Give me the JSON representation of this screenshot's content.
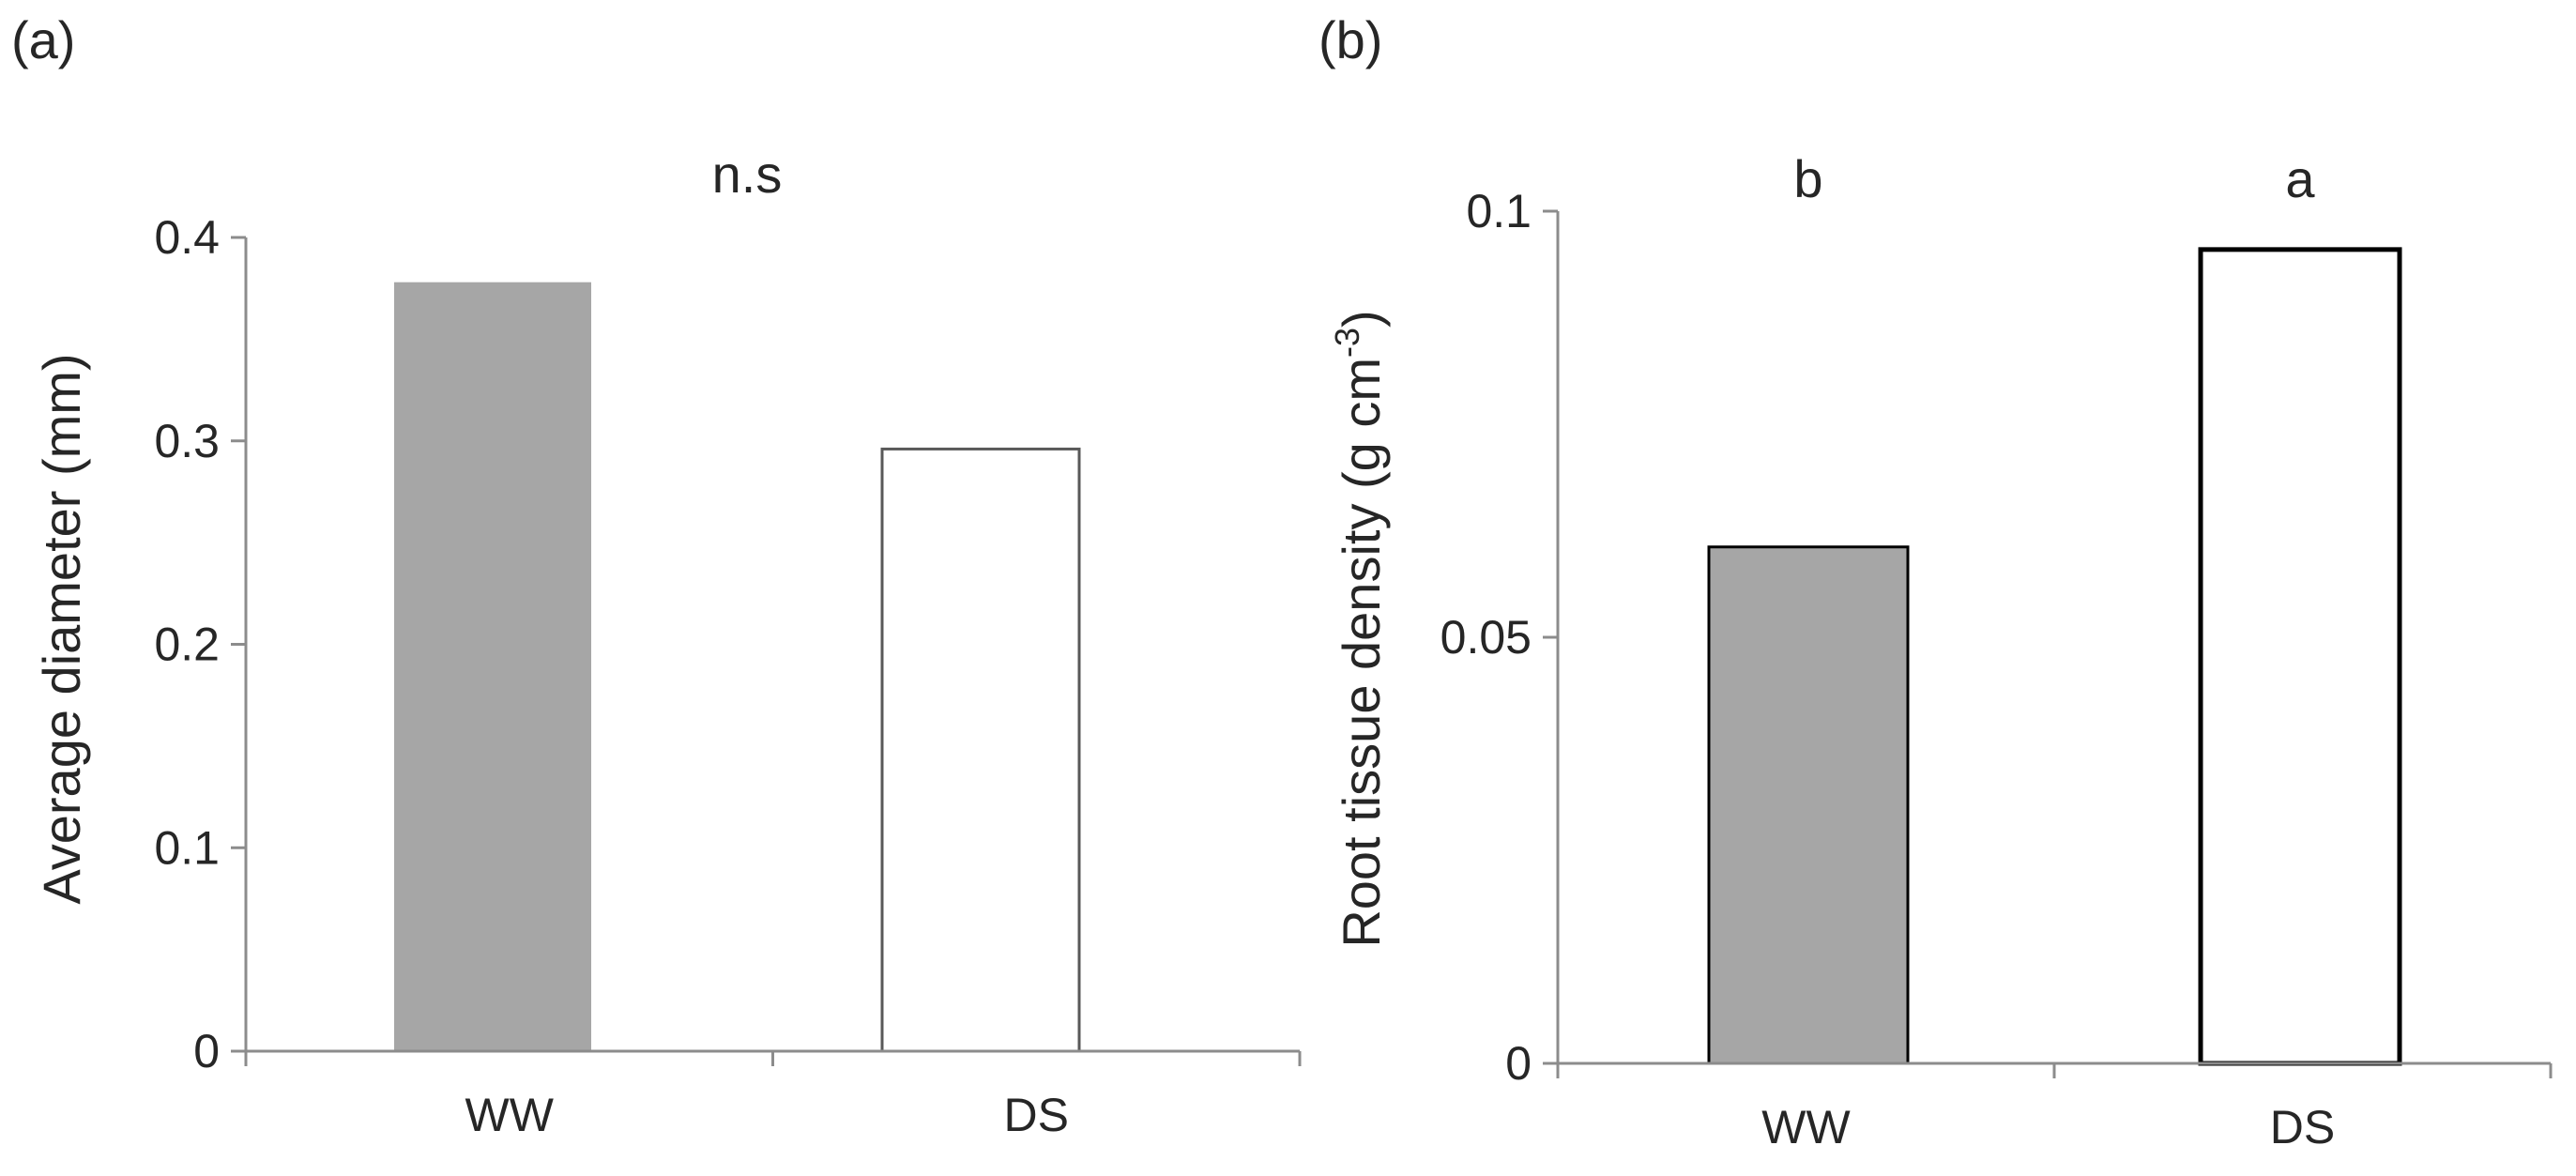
{
  "chart_data": [
    {
      "type": "bar",
      "panel_label": "(a)",
      "categories": [
        "WW",
        "DS"
      ],
      "values": [
        0.378,
        0.296
      ],
      "bar_colors": [
        "#a6a6a6",
        "#ffffff"
      ],
      "bar_outline": [
        "none",
        "#595959"
      ],
      "significance": "n.s",
      "ylabel": "Average diameter (mm)",
      "ylim": [
        0,
        0.4
      ],
      "yticks": [
        0,
        0.1,
        0.2,
        0.3,
        0.4
      ],
      "ytick_labels": [
        "0",
        "0.1",
        "0.2",
        "0.3",
        "0.4"
      ],
      "grid": false,
      "legend": "none"
    },
    {
      "type": "bar",
      "panel_label": "(b)",
      "categories": [
        "WW",
        "DS"
      ],
      "values": [
        0.0606,
        0.0955
      ],
      "bar_colors": [
        "#a6a6a6",
        "#ffffff"
      ],
      "bar_outline": [
        "#000000",
        "#000000"
      ],
      "significance_letters": [
        "b",
        "a"
      ],
      "ylabel": "Root tissue density  (g cm",
      "ylabel_superscript": "-3",
      "ylabel_suffix": ")",
      "ylim": [
        0,
        0.1
      ],
      "yticks": [
        0,
        0.05,
        0.1
      ],
      "ytick_labels": [
        "0",
        "0.05",
        "0.1"
      ],
      "grid": false,
      "legend": "none"
    }
  ]
}
